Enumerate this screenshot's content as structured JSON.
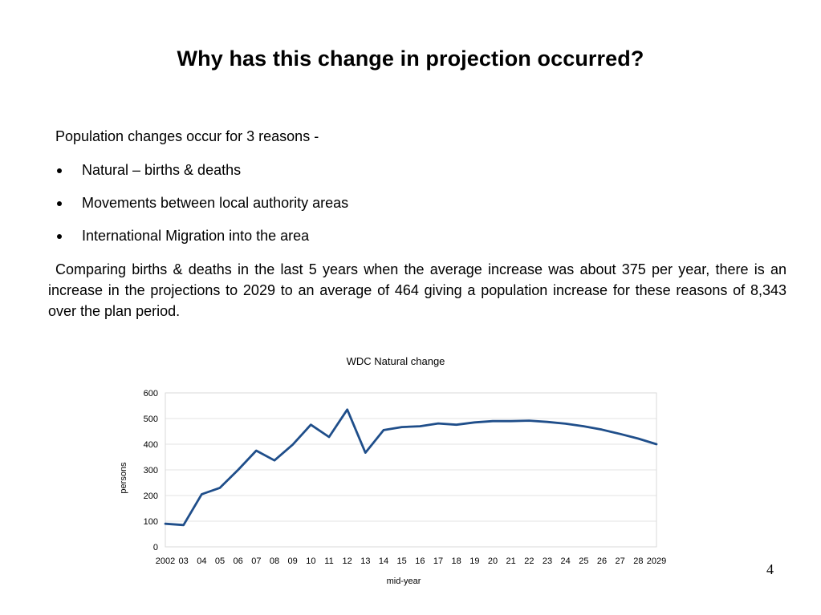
{
  "slide": {
    "title": "Why has this change in projection occurred?",
    "intro": "Population changes occur for 3 reasons -",
    "bullets": [
      "Natural – births & deaths",
      "Movements between local authority areas",
      "International Migration into the area"
    ],
    "paragraph": "Comparing  births & deaths in the last 5 years when the average increase was about 375 per year, there is an increase in the projections to 2029 to an average of 464 giving a population increase for these reasons of 8,343 over the plan period.",
    "page_number": "4"
  },
  "chart_data": {
    "type": "line",
    "title": "WDC Natural change",
    "xlabel": "mid-year",
    "ylabel": "persons",
    "categories": [
      "2002",
      "03",
      "04",
      "05",
      "06",
      "07",
      "08",
      "09",
      "10",
      "11",
      "12",
      "13",
      "14",
      "15",
      "16",
      "17",
      "18",
      "19",
      "20",
      "21",
      "22",
      "23",
      "24",
      "25",
      "26",
      "27",
      "28",
      "2029"
    ],
    "series": [
      {
        "values": [
          90,
          85,
          205,
          230,
          300,
          375,
          337,
          398,
          476,
          428,
          535,
          367,
          455,
          467,
          470,
          481,
          476,
          485,
          490,
          490,
          492,
          487,
          480,
          470,
          457,
          440,
          422,
          400
        ],
        "color": "#1f4e8a"
      }
    ],
    "ylim": [
      0,
      600
    ],
    "yticks": [
      0,
      100,
      200,
      300,
      400,
      500,
      600
    ],
    "grid": true,
    "legend": "none"
  }
}
